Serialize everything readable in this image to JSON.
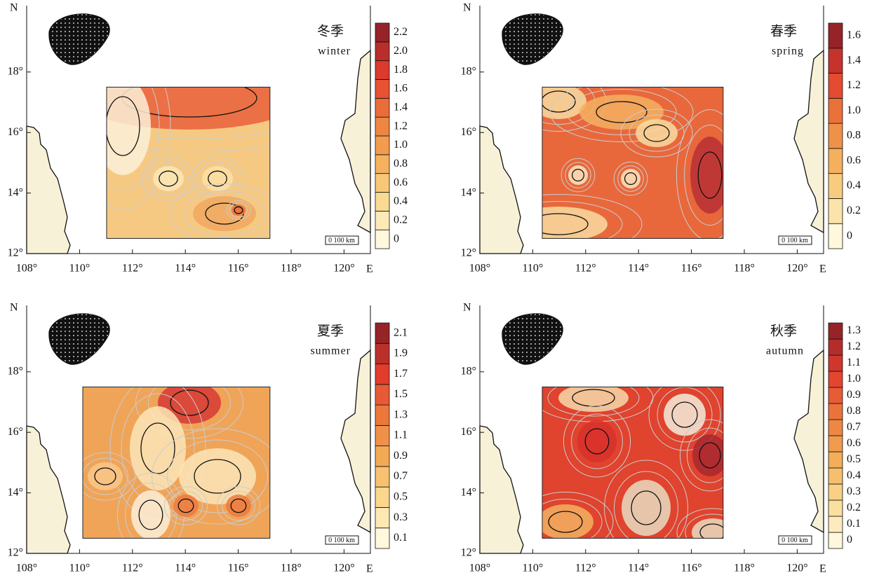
{
  "north": "N",
  "east": "E",
  "scale_bar": "0 100 km",
  "x_labels": [
    "108°",
    "110°",
    "112°",
    "114°",
    "116°",
    "118°",
    "120°"
  ],
  "y_labels": [
    "12°",
    "14°",
    "16°",
    "18°"
  ],
  "panels": [
    {
      "title": "冬季",
      "subtitle": "winter",
      "colorbar_labels": [
        "0",
        "0.2",
        "0.4",
        "0.6",
        "0.8",
        "1.0",
        "1.2",
        "1.4",
        "1.6",
        "1.8",
        "2.0",
        "2.2"
      ]
    },
    {
      "title": "春季",
      "subtitle": "spring",
      "colorbar_labels": [
        "0",
        "0.2",
        "0.4",
        "0.6",
        "0.8",
        "1.0",
        "1.2",
        "1.4",
        "1.6"
      ]
    },
    {
      "title": "夏季",
      "subtitle": "summer",
      "colorbar_labels": [
        "0.1",
        "0.3",
        "0.5",
        "0.7",
        "0.9",
        "1.1",
        "1.3",
        "1.5",
        "1.7",
        "1.9",
        "2.1"
      ]
    },
    {
      "title": "秋季",
      "subtitle": "autumn",
      "colorbar_labels": [
        "0",
        "0.1",
        "0.2",
        "0.3",
        "0.4",
        "0.5",
        "0.6",
        "0.7",
        "0.8",
        "0.9",
        "1.0",
        "1.1",
        "1.2",
        "1.3"
      ]
    }
  ]
}
